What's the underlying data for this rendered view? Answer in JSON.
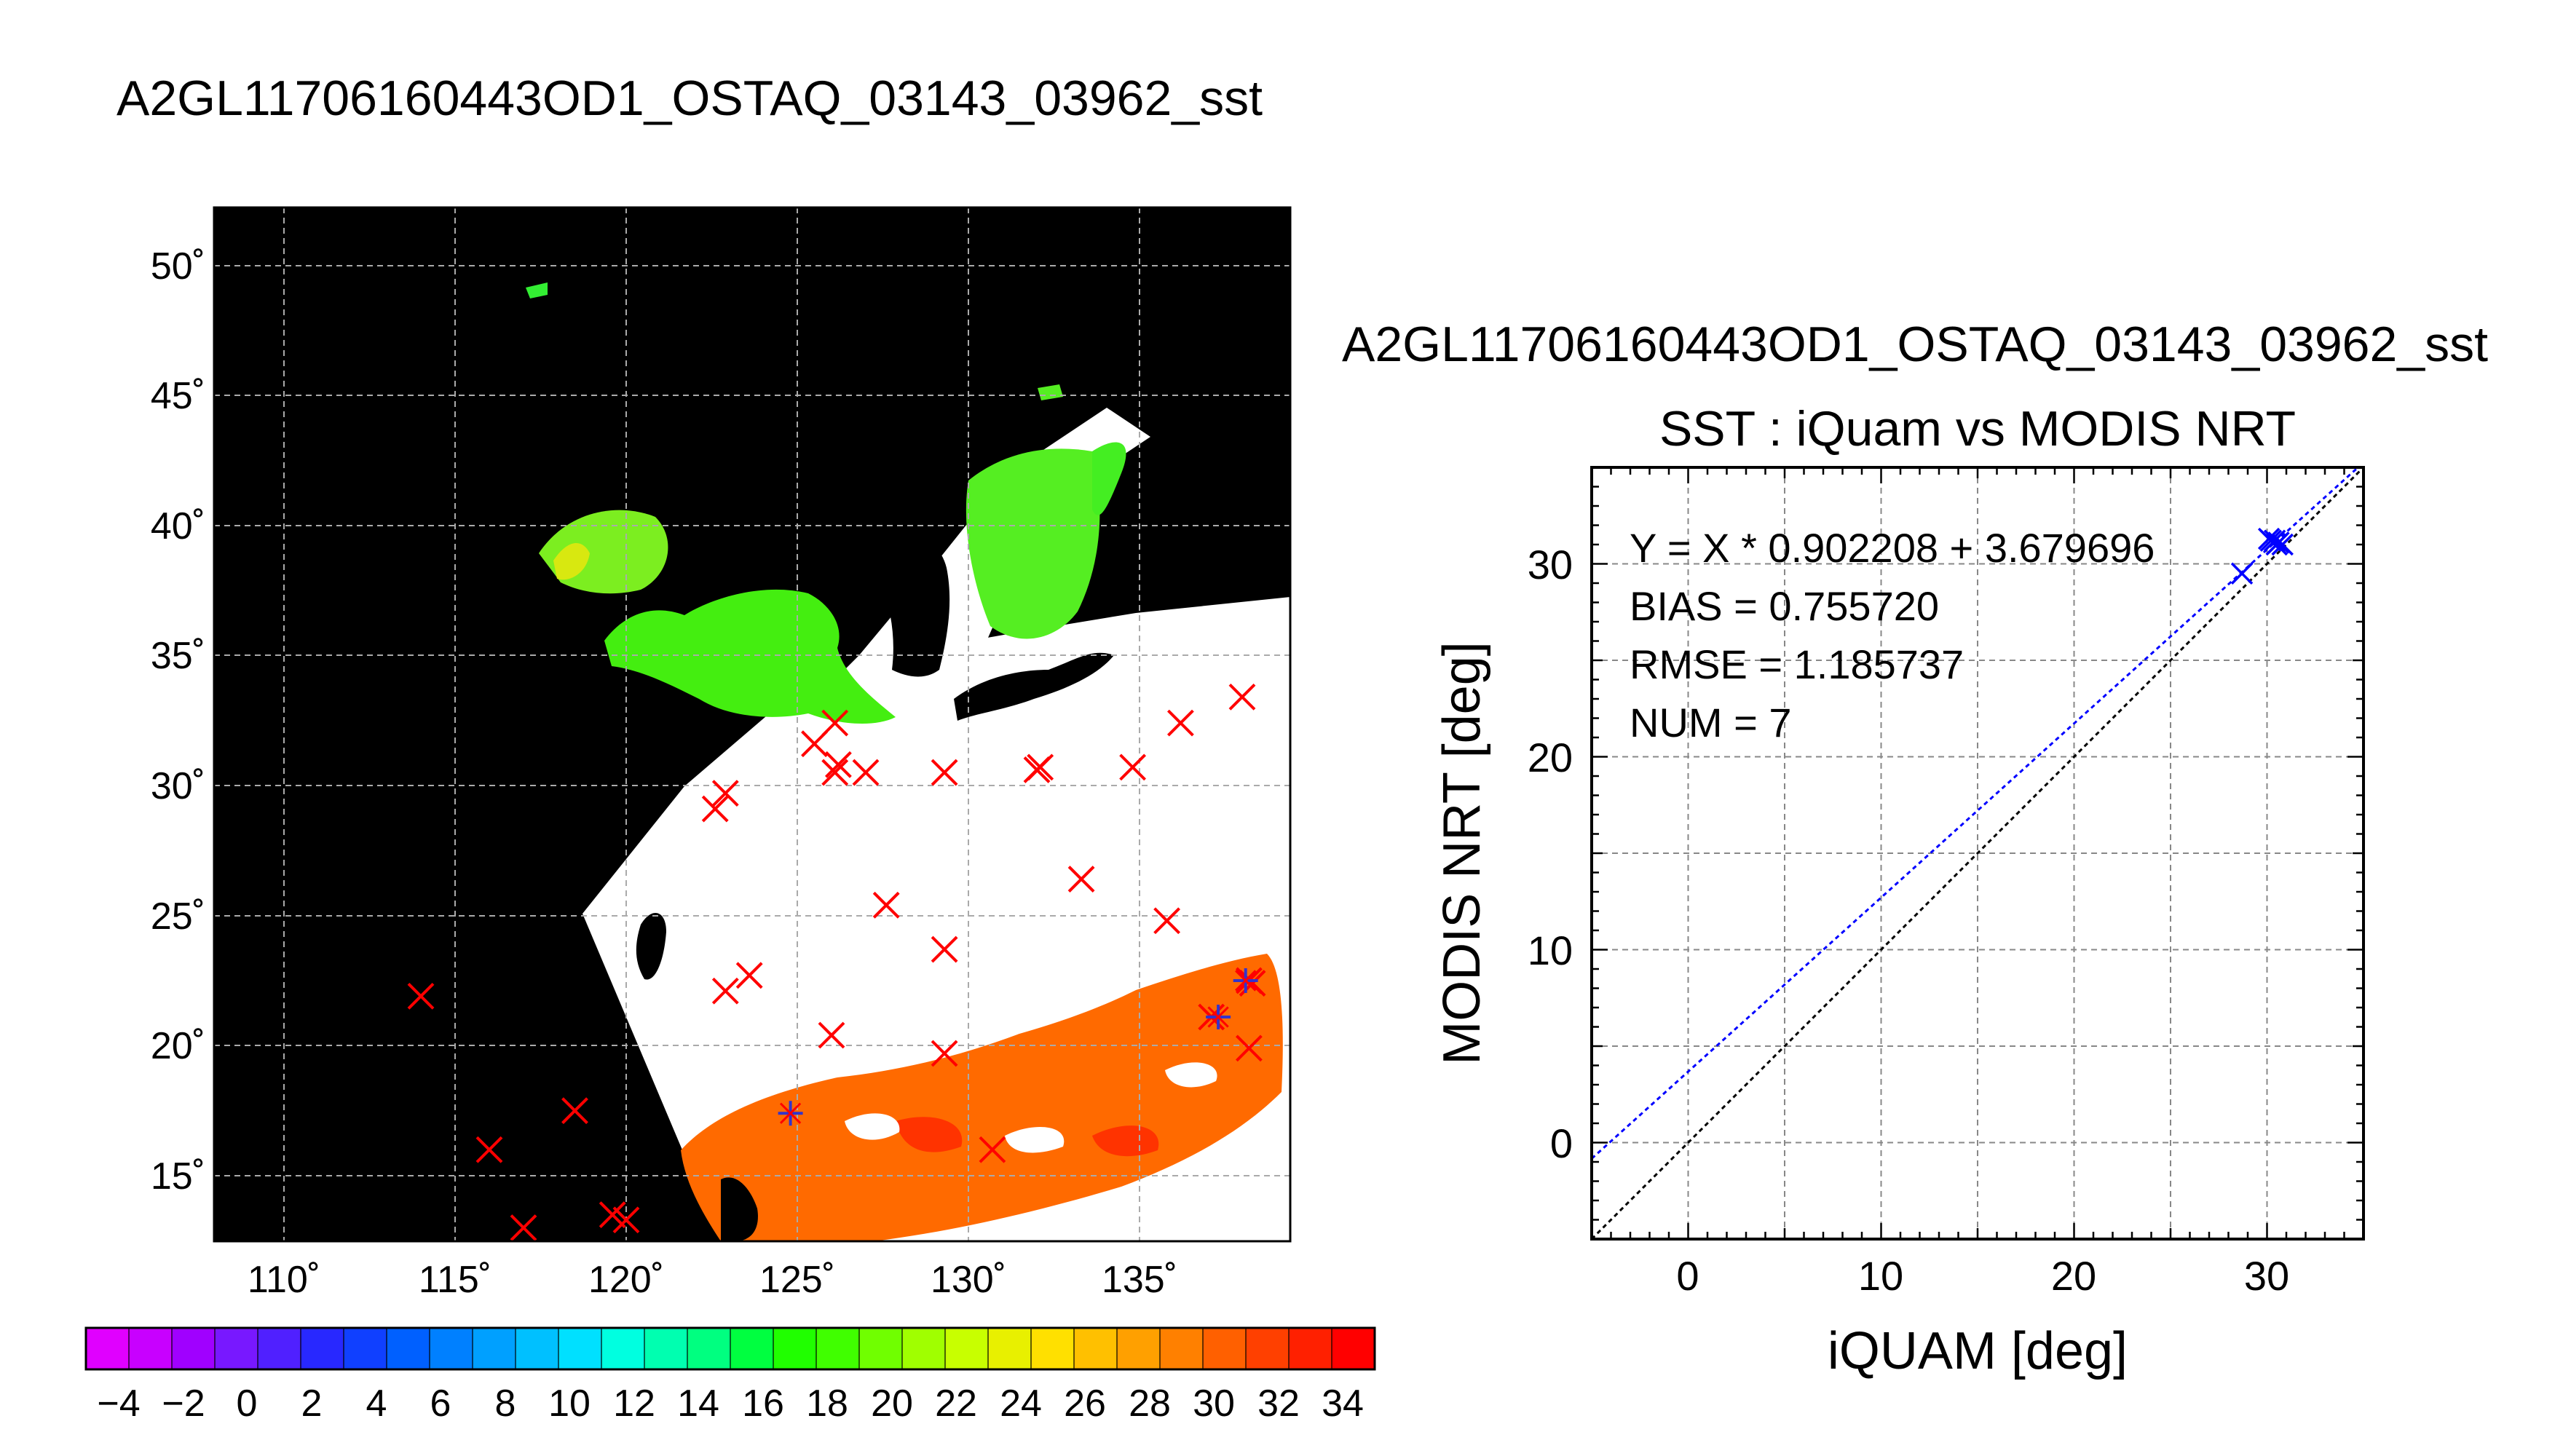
{
  "figure_title": "A2GL11706160443OD1_OSTAQ_03143_03962_sst",
  "chart_data": [
    {
      "type": "map",
      "title": "A2GL11706160443OD1_OSTAQ_03143_03962_sst",
      "lon_ticks": [
        "110˚",
        "115˚",
        "120˚",
        "125˚",
        "130˚",
        "135˚"
      ],
      "lat_ticks": [
        "15˚",
        "20˚",
        "25˚",
        "30˚",
        "35˚",
        "40˚",
        "45˚",
        "50˚"
      ],
      "lon_range": [
        108,
        139.5
      ],
      "lat_range": [
        12.5,
        52.5
      ],
      "grid": true,
      "matchup_markers_red_x": [
        [
          114,
          21.9
        ],
        [
          116,
          16
        ],
        [
          117,
          13
        ],
        [
          118.5,
          17.5
        ],
        [
          119.6,
          13.5
        ],
        [
          120,
          13.3
        ],
        [
          122.6,
          29.1
        ],
        [
          122.9,
          29.7
        ],
        [
          122.9,
          22.1
        ],
        [
          123.6,
          22.7
        ],
        [
          125.5,
          31.6
        ],
        [
          126,
          20.4
        ],
        [
          126.1,
          32.4
        ],
        [
          126.1,
          30.5
        ],
        [
          126.2,
          30.8
        ],
        [
          127,
          30.5
        ],
        [
          127.6,
          25.4
        ],
        [
          129.3,
          30.5
        ],
        [
          129.3,
          23.7
        ],
        [
          129.3,
          19.7
        ],
        [
          130.7,
          16
        ],
        [
          132,
          30.6
        ],
        [
          132.1,
          30.7
        ],
        [
          133.3,
          26.4
        ],
        [
          134.8,
          30.7
        ],
        [
          135.8,
          24.8
        ],
        [
          136.2,
          32.4
        ],
        [
          137.1,
          21.1
        ],
        [
          138,
          33.4
        ],
        [
          138.2,
          22.5
        ],
        [
          138.2,
          19.9
        ],
        [
          138.3,
          22.4
        ]
      ],
      "matchup_markers_blue_star": [
        [
          124.8,
          17.4
        ],
        [
          137.3,
          21.1
        ],
        [
          138.1,
          22.5
        ]
      ],
      "colorbar": {
        "ticks": [
          "−4",
          "−2",
          "0",
          "2",
          "4",
          "6",
          "8",
          "10",
          "12",
          "14",
          "16",
          "18",
          "20",
          "22",
          "24",
          "26",
          "28",
          "30",
          "32",
          "34"
        ],
        "range": [
          -5,
          35
        ],
        "colors": [
          "#e000ff",
          "#c800ff",
          "#a000ff",
          "#7818ff",
          "#5020ff",
          "#2828ff",
          "#1040ff",
          "#0060ff",
          "#0080ff",
          "#00a0ff",
          "#00c0ff",
          "#00e0ff",
          "#00ffe0",
          "#00ffb0",
          "#00ff80",
          "#00ff40",
          "#20ff00",
          "#40ff00",
          "#70ff00",
          "#a0ff00",
          "#c8ff00",
          "#e8f000",
          "#ffe000",
          "#ffc000",
          "#ffa000",
          "#ff8000",
          "#ff6000",
          "#ff4000",
          "#ff2000",
          "#ff0000"
        ]
      }
    },
    {
      "type": "scatter",
      "suptitle": "A2GL11706160443OD1_OSTAQ_03143_03962_sst",
      "title": "SST : iQuam vs MODIS NRT",
      "xlabel": "iQUAM [deg]",
      "ylabel": "MODIS NRT [deg]",
      "xlim": [
        -5,
        35
      ],
      "ylim": [
        -5,
        35
      ],
      "xticks": [
        "0",
        "10",
        "20",
        "30"
      ],
      "yticks": [
        "0",
        "10",
        "20",
        "30"
      ],
      "grid": true,
      "stats": {
        "equation": "Y = X * 0.902208 + 3.679696",
        "bias": "BIAS = 0.755720",
        "rmse": "RMSE = 1.185737",
        "num": "NUM = 7"
      },
      "fit": {
        "slope": 0.902208,
        "intercept": 3.679696,
        "color": "#0000ff"
      },
      "one_to_one_color": "#000000",
      "points": [
        {
          "x": 28.7,
          "y": 29.5
        },
        {
          "x": 30.1,
          "y": 31.3
        },
        {
          "x": 30.2,
          "y": 31.2
        },
        {
          "x": 30.4,
          "y": 31.2
        },
        {
          "x": 30.5,
          "y": 31.0
        },
        {
          "x": 30.6,
          "y": 31.1
        },
        {
          "x": 30.8,
          "y": 31.0
        }
      ],
      "point_color": "#0000ff"
    }
  ]
}
